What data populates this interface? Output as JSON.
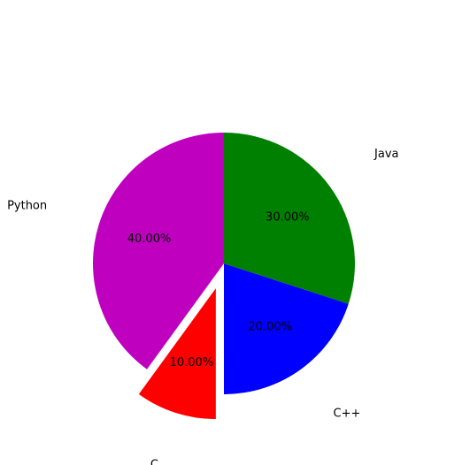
{
  "chart_data": {
    "type": "pie",
    "title": "",
    "categories": [
      "Python",
      "C",
      "C++",
      "Java"
    ],
    "values": [
      40,
      10,
      20,
      30
    ],
    "percent_labels": [
      "40.00%",
      "10.00%",
      "20.00%",
      "30.00%"
    ],
    "colors": [
      "#bf00bf",
      "#ff0000",
      "#0000ff",
      "#008000"
    ],
    "start_angle_deg": 90,
    "direction": "counterclockwise",
    "exploded": [
      "C"
    ],
    "legend": "none",
    "grid": false
  }
}
